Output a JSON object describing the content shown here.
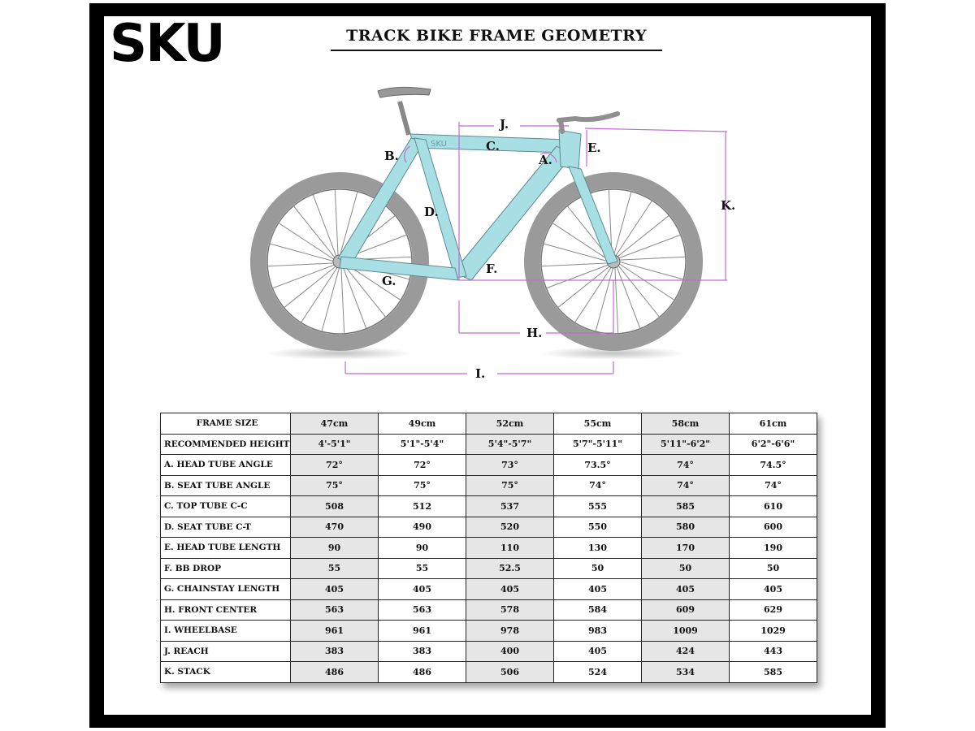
{
  "logo": {
    "text": "SKU"
  },
  "title": "TRACK BIKE FRAME GEOMETRY",
  "diagram": {
    "frame_label": "SKU",
    "labels": [
      "A.",
      "B.",
      "C.",
      "D.",
      "E.",
      "F.",
      "G.",
      "H.",
      "I.",
      "J.",
      "K."
    ],
    "colors": {
      "frame": "#a8dfe4",
      "wheel": "#9a9a9a",
      "dimension_lines": "#c26bd0"
    }
  },
  "table": {
    "header": {
      "label": "FRAME SIZE",
      "sizes": [
        "47cm",
        "49cm",
        "52cm",
        "55cm",
        "58cm",
        "61cm"
      ]
    },
    "rows": [
      {
        "label": "RECOMMENDED HEIGHT",
        "values": [
          "4'-5'1\"",
          "5'1\"-5'4\"",
          "5'4\"-5'7\"",
          "5'7\"-5'11\"",
          "5'11\"-6'2\"",
          "6'2\"-6'6\""
        ]
      },
      {
        "label": "A. HEAD TUBE ANGLE",
        "values": [
          "72°",
          "72°",
          "73°",
          "73.5°",
          "74°",
          "74.5°"
        ]
      },
      {
        "label": "B. SEAT TUBE ANGLE",
        "values": [
          "75°",
          "75°",
          "75°",
          "74°",
          "74°",
          "74°"
        ]
      },
      {
        "label": "C. TOP TUBE C-C",
        "values": [
          "508",
          "512",
          "537",
          "555",
          "585",
          "610"
        ]
      },
      {
        "label": "D. SEAT TUBE C-T",
        "values": [
          "470",
          "490",
          "520",
          "550",
          "580",
          "600"
        ]
      },
      {
        "label": "E. HEAD TUBE LENGTH",
        "values": [
          "90",
          "90",
          "110",
          "130",
          "170",
          "190"
        ]
      },
      {
        "label": "F. BB DROP",
        "values": [
          "55",
          "55",
          "52.5",
          "50",
          "50",
          "50"
        ]
      },
      {
        "label": "G. CHAINSTAY LENGTH",
        "values": [
          "405",
          "405",
          "405",
          "405",
          "405",
          "405"
        ]
      },
      {
        "label": "H. FRONT CENTER",
        "values": [
          "563",
          "563",
          "578",
          "584",
          "609",
          "629"
        ]
      },
      {
        "label": "I. WHEELBASE",
        "values": [
          "961",
          "961",
          "978",
          "983",
          "1009",
          "1029"
        ]
      },
      {
        "label": "J. REACH",
        "values": [
          "383",
          "383",
          "400",
          "405",
          "424",
          "443"
        ]
      },
      {
        "label": "K. STACK",
        "values": [
          "486",
          "486",
          "506",
          "524",
          "534",
          "585"
        ]
      }
    ]
  }
}
